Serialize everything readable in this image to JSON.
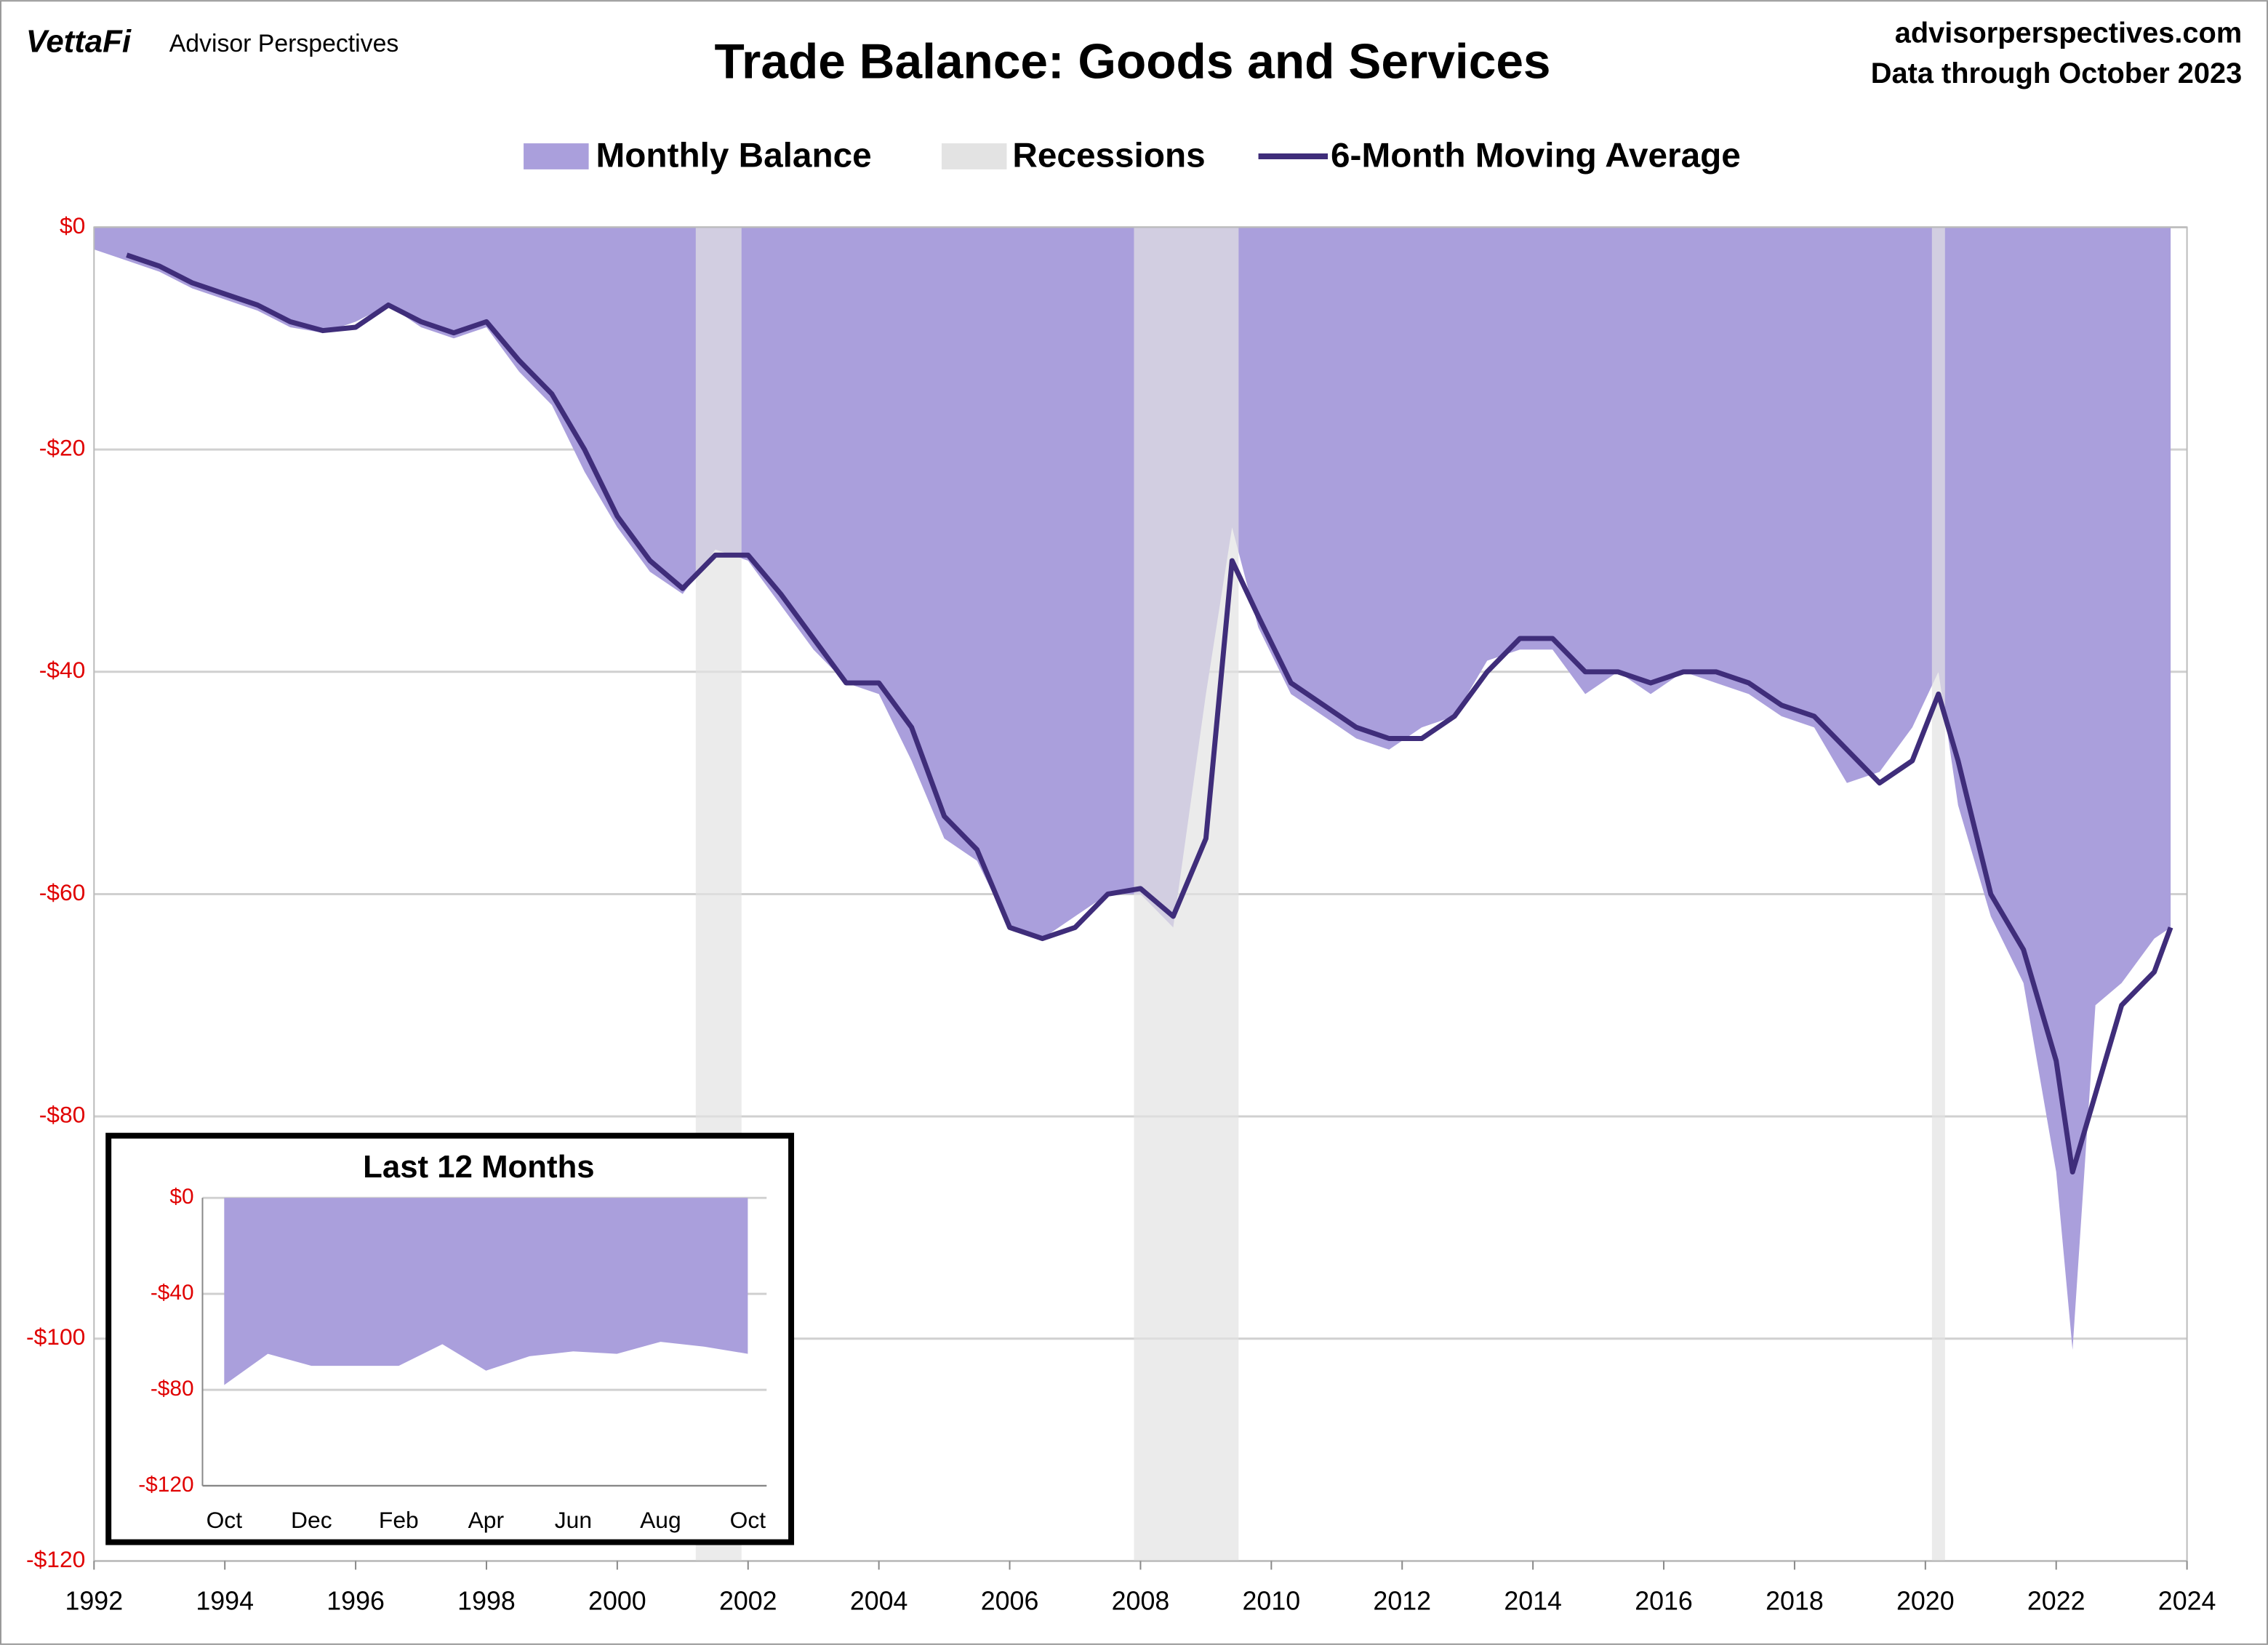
{
  "header": {
    "brand": "VettaFi",
    "brand_sub": "Advisor Perspectives",
    "site": "advisorperspectives.com",
    "note": "Data through October 2023"
  },
  "chart_data": [
    {
      "type": "area",
      "title": "Trade Balance: Goods and Services",
      "x": [
        1992.0,
        1992.5,
        1993.0,
        1993.5,
        1994.0,
        1994.5,
        1995.0,
        1995.5,
        1996.0,
        1996.5,
        1997.0,
        1997.5,
        1998.0,
        1998.5,
        1999.0,
        1999.5,
        2000.0,
        2000.5,
        2001.0,
        2001.5,
        2002.0,
        2002.5,
        2003.0,
        2003.5,
        2004.0,
        2004.5,
        2005.0,
        2005.5,
        2006.0,
        2006.5,
        2007.0,
        2007.5,
        2008.0,
        2008.5,
        2009.0,
        2009.4,
        2009.8,
        2010.3,
        2010.8,
        2011.3,
        2011.8,
        2012.3,
        2012.8,
        2013.3,
        2013.8,
        2014.3,
        2014.8,
        2015.3,
        2015.8,
        2016.3,
        2016.8,
        2017.3,
        2017.8,
        2018.3,
        2018.8,
        2019.3,
        2019.8,
        2020.2,
        2020.5,
        2021.0,
        2021.5,
        2022.0,
        2022.25,
        2022.6,
        2023.0,
        2023.5,
        2023.75
      ],
      "series": [
        {
          "name": "Monthly Balance",
          "color": "#aa9fdc",
          "values": [
            -2,
            -3,
            -4,
            -5.5,
            -6.5,
            -7.5,
            -9,
            -9.5,
            -8.5,
            -7,
            -9,
            -10,
            -9,
            -13,
            -16,
            -22,
            -27,
            -31,
            -33,
            -29,
            -30,
            -34,
            -38,
            -41,
            -42,
            -48,
            -55,
            -57,
            -63,
            -64,
            -62,
            -60,
            -60,
            -63,
            -42,
            -27,
            -36,
            -42,
            -44,
            -46,
            -47,
            -45,
            -44,
            -39,
            -38,
            -38,
            -42,
            -40,
            -42,
            -40,
            -41,
            -42,
            -44,
            -45,
            -50,
            -49,
            -45,
            -40,
            -52,
            -62,
            -68,
            -85,
            -101,
            -70,
            -68,
            -64,
            -63
          ]
        },
        {
          "name": "6-Month Moving Average",
          "color": "#3f2d7a",
          "values": [
            null,
            -2.5,
            -3.5,
            -5,
            -6,
            -7,
            -8.5,
            -9.3,
            -9,
            -7,
            -8.5,
            -9.5,
            -8.5,
            -12,
            -15,
            -20,
            -26,
            -30,
            -32.5,
            -29.5,
            -29.5,
            -33,
            -37,
            -41,
            -41,
            -45,
            -53,
            -56,
            -63,
            -64,
            -63,
            -60,
            -59.5,
            -62,
            -55,
            -30,
            -35,
            -41,
            -43,
            -45,
            -46,
            -46,
            -44,
            -40,
            -37,
            -37,
            -40,
            -40,
            -41,
            -40,
            -40,
            -41,
            -43,
            -44,
            -47,
            -50,
            -48,
            -42,
            -48,
            -60,
            -65,
            -75,
            -85,
            -78,
            -70,
            -67,
            -63
          ]
        },
        {
          "name": "Recessions",
          "color": "#e3e3e3",
          "ranges": [
            [
              2001.2,
              2001.9
            ],
            [
              2007.9,
              2009.5
            ],
            [
              2020.1,
              2020.3
            ]
          ]
        }
      ],
      "xlim": [
        1992,
        2024
      ],
      "xticks": [
        1992,
        1994,
        1996,
        1998,
        2000,
        2002,
        2004,
        2006,
        2008,
        2010,
        2012,
        2014,
        2016,
        2018,
        2020,
        2022,
        2024
      ],
      "ylim": [
        -120,
        0
      ],
      "yticks": [
        {
          "value": 0,
          "label": "$0"
        },
        {
          "value": -20,
          "label": "-$20"
        },
        {
          "value": -40,
          "label": "-$40"
        },
        {
          "value": -60,
          "label": "-$60"
        },
        {
          "value": -80,
          "label": "-$80"
        },
        {
          "value": -100,
          "label": "-$100"
        },
        {
          "value": -120,
          "label": "-$120"
        }
      ],
      "grid": true
    },
    {
      "type": "area",
      "title": "Last 12 Months",
      "color": "#aa9fdc",
      "categories": [
        "Oct",
        null,
        "Dec",
        null,
        "Feb",
        null,
        "Apr",
        null,
        "Jun",
        null,
        "Aug",
        null,
        "Oct"
      ],
      "values": [
        -78,
        -65,
        -70,
        -70,
        -70,
        -61,
        -72,
        -66,
        -64,
        -65,
        -60,
        -62,
        -65
      ],
      "ylim": [
        -120,
        0
      ],
      "yticks": [
        {
          "value": 0,
          "label": "$0"
        },
        {
          "value": -40,
          "label": "-$40"
        },
        {
          "value": -80,
          "label": "-$80"
        },
        {
          "value": -120,
          "label": "-$120"
        }
      ],
      "grid": true
    }
  ]
}
